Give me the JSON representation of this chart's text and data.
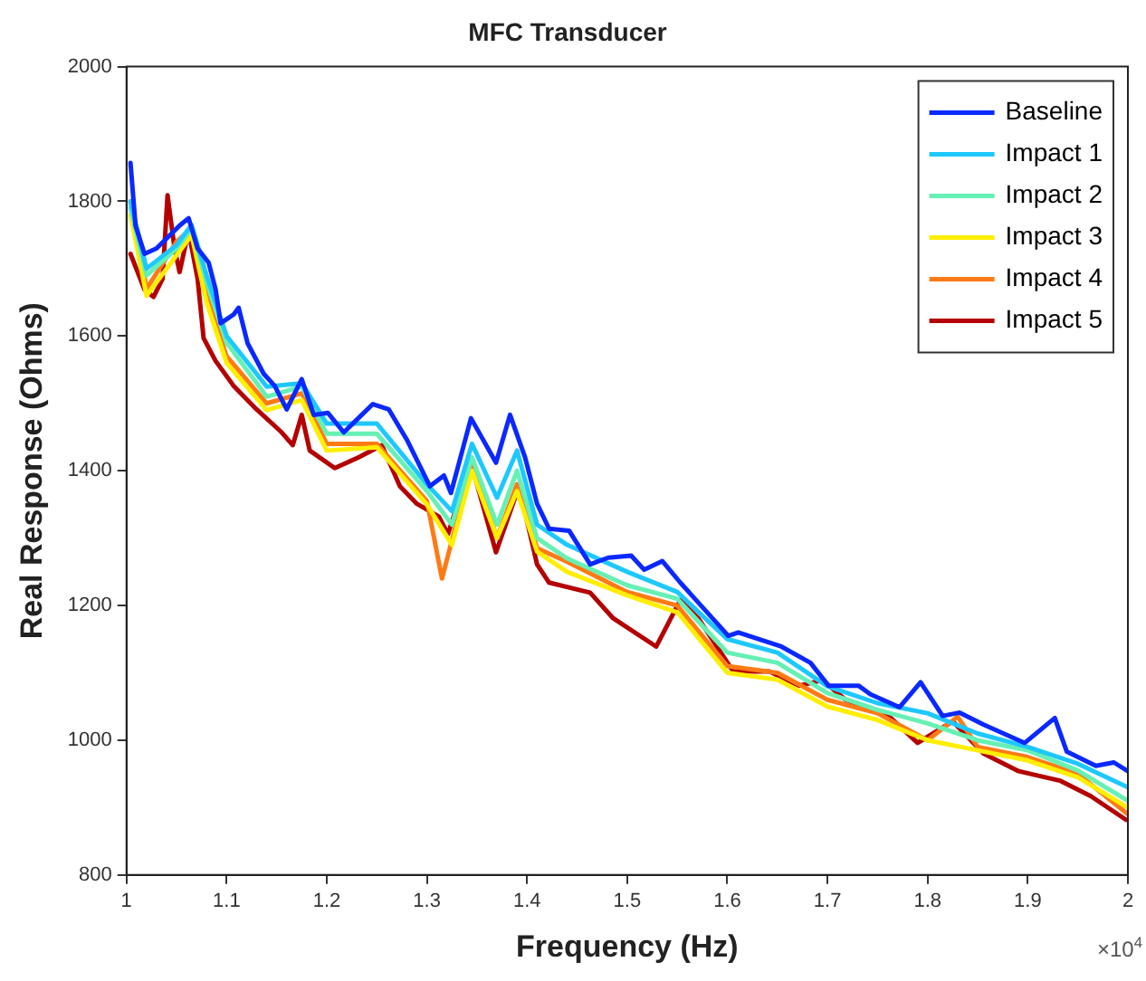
{
  "chart_data": {
    "type": "line",
    "title": "MFC Transducer",
    "xlabel": "Frequency (Hz)",
    "ylabel": "Real Response (Ohms)",
    "xlim": [
      1,
      2
    ],
    "xticks": [
      1,
      1.1,
      1.2,
      1.3,
      1.4,
      1.5,
      1.6,
      1.7,
      1.8,
      1.9,
      2
    ],
    "ylim": [
      800,
      2000
    ],
    "yticks": [
      800,
      1000,
      1200,
      1400,
      1600,
      1800,
      2000
    ],
    "legend": "top right",
    "marker": "none",
    "line_style": "solid",
    "annotations": [
      "×10$^{4}$"
    ],
    "series": [
      {
        "name": "Baseline",
        "color": "#0a28ff",
        "x": [
          1.004,
          1.009,
          1.018,
          1.03,
          1.053,
          1.062,
          1.071,
          1.082,
          1.089,
          1.094,
          1.107,
          1.112,
          1.121,
          1.137,
          1.148,
          1.16,
          1.175,
          1.187,
          1.201,
          1.217,
          1.228,
          1.246,
          1.262,
          1.28,
          1.303,
          1.317,
          1.324,
          1.344,
          1.369,
          1.383,
          1.398,
          1.41,
          1.422,
          1.442,
          1.463,
          1.481,
          1.504,
          1.517,
          1.535,
          1.553,
          1.601,
          1.611,
          1.654,
          1.683,
          1.701,
          1.731,
          1.743,
          1.772,
          1.793,
          1.815,
          1.832,
          1.856,
          1.897,
          1.927,
          1.939,
          1.968,
          1.986,
          2.0
        ],
        "values": [
          1857,
          1764,
          1722,
          1730,
          1764,
          1775,
          1730,
          1709,
          1669,
          1619,
          1632,
          1642,
          1589,
          1544,
          1526,
          1491,
          1536,
          1483,
          1486,
          1457,
          1473,
          1499,
          1491,
          1446,
          1377,
          1393,
          1367,
          1478,
          1412,
          1483,
          1420,
          1351,
          1314,
          1311,
          1261,
          1271,
          1274,
          1253,
          1266,
          1234,
          1155,
          1160,
          1139,
          1115,
          1081,
          1081,
          1068,
          1049,
          1086,
          1036,
          1041,
          1023,
          996,
          1033,
          983,
          962,
          967,
          954
        ]
      },
      {
        "name": "Impact 1",
        "color": "#1ec8ff",
        "x": [
          1.004,
          1.02,
          1.05,
          1.065,
          1.08,
          1.1,
          1.14,
          1.175,
          1.2,
          1.25,
          1.3,
          1.325,
          1.345,
          1.37,
          1.39,
          1.41,
          1.44,
          1.5,
          1.55,
          1.6,
          1.65,
          1.7,
          1.75,
          1.8,
          1.85,
          1.9,
          1.95,
          2.0
        ],
        "values": [
          1800,
          1700,
          1735,
          1765,
          1690,
          1600,
          1525,
          1530,
          1470,
          1470,
          1380,
          1340,
          1440,
          1360,
          1430,
          1320,
          1290,
          1250,
          1220,
          1150,
          1130,
          1080,
          1055,
          1040,
          1010,
          990,
          965,
          930
        ]
      },
      {
        "name": "Impact 2",
        "color": "#66f0b4",
        "x": [
          1.004,
          1.02,
          1.05,
          1.065,
          1.08,
          1.1,
          1.14,
          1.175,
          1.2,
          1.25,
          1.3,
          1.325,
          1.345,
          1.37,
          1.39,
          1.41,
          1.44,
          1.5,
          1.55,
          1.6,
          1.65,
          1.7,
          1.75,
          1.8,
          1.85,
          1.9,
          1.95,
          2.0
        ],
        "values": [
          1790,
          1690,
          1730,
          1760,
          1680,
          1590,
          1510,
          1525,
          1455,
          1455,
          1370,
          1320,
          1420,
          1320,
          1400,
          1300,
          1270,
          1230,
          1210,
          1130,
          1115,
          1070,
          1045,
          1025,
          1000,
          985,
          955,
          910
        ]
      },
      {
        "name": "Impact 3",
        "color": "#ffee00",
        "x": [
          1.004,
          1.02,
          1.05,
          1.065,
          1.08,
          1.1,
          1.14,
          1.175,
          1.2,
          1.25,
          1.3,
          1.325,
          1.345,
          1.37,
          1.39,
          1.41,
          1.44,
          1.5,
          1.55,
          1.6,
          1.65,
          1.7,
          1.75,
          1.8,
          1.85,
          1.9,
          1.95,
          2.0
        ],
        "values": [
          1780,
          1660,
          1720,
          1750,
          1650,
          1560,
          1490,
          1505,
          1430,
          1435,
          1350,
          1290,
          1400,
          1300,
          1370,
          1280,
          1250,
          1215,
          1190,
          1100,
          1090,
          1050,
          1030,
          1000,
          985,
          970,
          945,
          900
        ]
      },
      {
        "name": "Impact 4",
        "color": "#ff7a14",
        "x": [
          1.004,
          1.02,
          1.05,
          1.065,
          1.08,
          1.1,
          1.14,
          1.175,
          1.2,
          1.25,
          1.3,
          1.315,
          1.345,
          1.37,
          1.39,
          1.41,
          1.44,
          1.5,
          1.55,
          1.6,
          1.65,
          1.7,
          1.75,
          1.8,
          1.83,
          1.85,
          1.9,
          1.95,
          2.0
        ],
        "values": [
          1800,
          1670,
          1740,
          1760,
          1660,
          1570,
          1500,
          1515,
          1440,
          1440,
          1355,
          1240,
          1410,
          1300,
          1380,
          1285,
          1265,
          1220,
          1200,
          1110,
          1100,
          1060,
          1040,
          1000,
          1035,
          990,
          975,
          950,
          890
        ]
      },
      {
        "name": "Impact 5",
        "color": "#b40000",
        "x": [
          1.004,
          1.018,
          1.027,
          1.036,
          1.041,
          1.048,
          1.053,
          1.062,
          1.071,
          1.077,
          1.089,
          1.107,
          1.13,
          1.155,
          1.166,
          1.175,
          1.183,
          1.208,
          1.232,
          1.255,
          1.273,
          1.29,
          1.312,
          1.321,
          1.344,
          1.369,
          1.392,
          1.41,
          1.422,
          1.463,
          1.486,
          1.529,
          1.553,
          1.571,
          1.606,
          1.642,
          1.672,
          1.695,
          1.718,
          1.761,
          1.79,
          1.825,
          1.856,
          1.891,
          1.932,
          1.963,
          1.998
        ],
        "values": [
          1722,
          1669,
          1658,
          1685,
          1809,
          1730,
          1695,
          1756,
          1685,
          1597,
          1563,
          1526,
          1491,
          1457,
          1438,
          1483,
          1430,
          1404,
          1420,
          1438,
          1377,
          1351,
          1332,
          1306,
          1412,
          1279,
          1377,
          1261,
          1234,
          1219,
          1181,
          1139,
          1208,
          1181,
          1102,
          1102,
          1081,
          1089,
          1060,
          1036,
          996,
          1028,
          980,
          954,
          940,
          917,
          882
        ]
      }
    ]
  }
}
